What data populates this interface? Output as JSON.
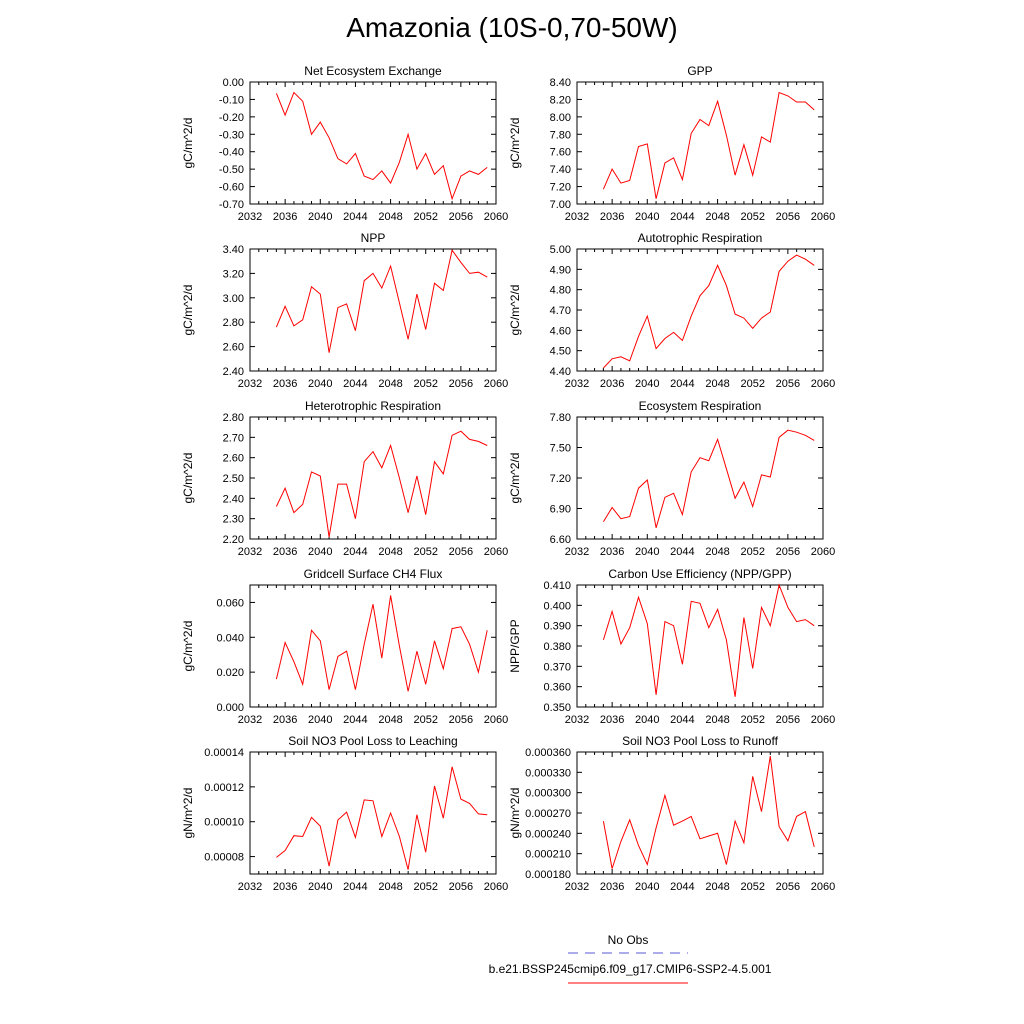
{
  "figure": {
    "title": "Amazonia (10S-0,70-50W)",
    "legend": [
      {
        "label": "No Obs",
        "color": "#5a5ad6",
        "style": "dashed"
      },
      {
        "label": "b.e21.BSSP245cmip6.f09_g17.CMIP6-SSP2-4.5.001",
        "color": "#ff0000",
        "style": "solid"
      }
    ],
    "line_color": "#ff0000"
  },
  "chart_data": [
    {
      "type": "line",
      "title": "Net Ecosystem Exchange",
      "ylabel": "gC/m^2/d",
      "xlim": [
        2032,
        2060
      ],
      "ylim": [
        -0.7,
        0.0
      ],
      "xticks": [
        "2032",
        "2036",
        "2040",
        "2044",
        "2048",
        "2052",
        "2056",
        "2060"
      ],
      "yticks": [
        "-0.70",
        "-0.60",
        "-0.50",
        "-0.40",
        "-0.30",
        "-0.20",
        "-0.10",
        "0.00"
      ],
      "x": [
        2035,
        2036,
        2037,
        2038,
        2039,
        2040,
        2041,
        2042,
        2043,
        2044,
        2045,
        2046,
        2047,
        2048,
        2049,
        2050,
        2051,
        2052,
        2053,
        2054,
        2055,
        2056,
        2057,
        2058,
        2059
      ],
      "series": [
        {
          "values": [
            -0.065,
            -0.19,
            -0.06,
            -0.11,
            -0.3,
            -0.23,
            -0.32,
            -0.44,
            -0.47,
            -0.41,
            -0.54,
            -0.56,
            -0.51,
            -0.58,
            -0.46,
            -0.3,
            -0.5,
            -0.41,
            -0.53,
            -0.48,
            -0.67,
            -0.54,
            -0.51,
            -0.53,
            -0.49
          ]
        }
      ]
    },
    {
      "type": "line",
      "title": "GPP",
      "ylabel": "gC/m^2/d",
      "xlim": [
        2032,
        2060
      ],
      "ylim": [
        7.0,
        8.4
      ],
      "xticks": [
        "2032",
        "2036",
        "2040",
        "2044",
        "2048",
        "2052",
        "2056",
        "2060"
      ],
      "yticks": [
        "7.00",
        "7.20",
        "7.40",
        "7.60",
        "7.80",
        "8.00",
        "8.20",
        "8.40"
      ],
      "x": [
        2035,
        2036,
        2037,
        2038,
        2039,
        2040,
        2041,
        2042,
        2043,
        2044,
        2045,
        2046,
        2047,
        2048,
        2049,
        2050,
        2051,
        2052,
        2053,
        2054,
        2055,
        2056,
        2057,
        2058,
        2059
      ],
      "series": [
        {
          "values": [
            7.17,
            7.4,
            7.24,
            7.27,
            7.66,
            7.69,
            7.06,
            7.47,
            7.53,
            7.28,
            7.81,
            7.97,
            7.9,
            8.18,
            7.79,
            7.33,
            7.68,
            7.33,
            7.77,
            7.71,
            8.28,
            8.24,
            8.17,
            8.17,
            8.08
          ]
        }
      ]
    },
    {
      "type": "line",
      "title": "NPP",
      "ylabel": "gC/m^2/d",
      "xlim": [
        2032,
        2060
      ],
      "ylim": [
        2.4,
        3.4
      ],
      "xticks": [
        "2032",
        "2036",
        "2040",
        "2044",
        "2048",
        "2052",
        "2056",
        "2060"
      ],
      "yticks": [
        "2.40",
        "2.60",
        "2.80",
        "3.00",
        "3.20",
        "3.40"
      ],
      "x": [
        2035,
        2036,
        2037,
        2038,
        2039,
        2040,
        2041,
        2042,
        2043,
        2044,
        2045,
        2046,
        2047,
        2048,
        2049,
        2050,
        2051,
        2052,
        2053,
        2054,
        2055,
        2056,
        2057,
        2058,
        2059
      ],
      "series": [
        {
          "values": [
            2.76,
            2.93,
            2.77,
            2.82,
            3.09,
            3.03,
            2.55,
            2.92,
            2.95,
            2.73,
            3.14,
            3.2,
            3.08,
            3.26,
            2.96,
            2.66,
            3.03,
            2.74,
            3.12,
            3.06,
            3.39,
            3.29,
            3.2,
            3.21,
            3.17
          ]
        }
      ]
    },
    {
      "type": "line",
      "title": "Autotrophic Respiration",
      "ylabel": "gC/m^2/d",
      "xlim": [
        2032,
        2060
      ],
      "ylim": [
        4.4,
        5.0
      ],
      "xticks": [
        "2032",
        "2036",
        "2040",
        "2044",
        "2048",
        "2052",
        "2056",
        "2060"
      ],
      "yticks": [
        "4.40",
        "4.50",
        "4.60",
        "4.70",
        "4.80",
        "4.90",
        "5.00"
      ],
      "x": [
        2035,
        2036,
        2037,
        2038,
        2039,
        2040,
        2041,
        2042,
        2043,
        2044,
        2045,
        2046,
        2047,
        2048,
        2049,
        2050,
        2051,
        2052,
        2053,
        2054,
        2055,
        2056,
        2057,
        2058,
        2059
      ],
      "series": [
        {
          "values": [
            4.415,
            4.46,
            4.47,
            4.45,
            4.57,
            4.67,
            4.51,
            4.56,
            4.59,
            4.55,
            4.67,
            4.77,
            4.82,
            4.92,
            4.82,
            4.68,
            4.66,
            4.61,
            4.66,
            4.69,
            4.89,
            4.94,
            4.97,
            4.95,
            4.92
          ]
        }
      ]
    },
    {
      "type": "line",
      "title": "Heterotrophic Respiration",
      "ylabel": "gC/m^2/d",
      "xlim": [
        2032,
        2060
      ],
      "ylim": [
        2.2,
        2.8
      ],
      "xticks": [
        "2032",
        "2036",
        "2040",
        "2044",
        "2048",
        "2052",
        "2056",
        "2060"
      ],
      "yticks": [
        "2.20",
        "2.30",
        "2.40",
        "2.50",
        "2.60",
        "2.70",
        "2.80"
      ],
      "x": [
        2035,
        2036,
        2037,
        2038,
        2039,
        2040,
        2041,
        2042,
        2043,
        2044,
        2045,
        2046,
        2047,
        2048,
        2049,
        2050,
        2051,
        2052,
        2053,
        2054,
        2055,
        2056,
        2057,
        2058,
        2059
      ],
      "series": [
        {
          "values": [
            2.36,
            2.45,
            2.33,
            2.37,
            2.53,
            2.51,
            2.21,
            2.47,
            2.47,
            2.3,
            2.58,
            2.63,
            2.55,
            2.66,
            2.5,
            2.33,
            2.51,
            2.32,
            2.58,
            2.52,
            2.71,
            2.73,
            2.69,
            2.68,
            2.66
          ]
        }
      ]
    },
    {
      "type": "line",
      "title": "Ecosystem Respiration",
      "ylabel": "gC/m^2/d",
      "xlim": [
        2032,
        2060
      ],
      "ylim": [
        6.6,
        7.8
      ],
      "xticks": [
        "2032",
        "2036",
        "2040",
        "2044",
        "2048",
        "2052",
        "2056",
        "2060"
      ],
      "yticks": [
        "6.60",
        "6.90",
        "7.20",
        "7.50",
        "7.80"
      ],
      "x": [
        2035,
        2036,
        2037,
        2038,
        2039,
        2040,
        2041,
        2042,
        2043,
        2044,
        2045,
        2046,
        2047,
        2048,
        2049,
        2050,
        2051,
        2052,
        2053,
        2054,
        2055,
        2056,
        2057,
        2058,
        2059
      ],
      "series": [
        {
          "values": [
            6.77,
            6.91,
            6.8,
            6.82,
            7.1,
            7.18,
            6.71,
            7.01,
            7.05,
            6.84,
            7.26,
            7.4,
            7.37,
            7.58,
            7.29,
            7.0,
            7.16,
            6.92,
            7.23,
            7.21,
            7.6,
            7.67,
            7.65,
            7.62,
            7.57
          ]
        }
      ]
    },
    {
      "type": "line",
      "title": "Gridcell Surface CH4 Flux",
      "ylabel": "gC/m^2/d",
      "xlim": [
        2032,
        2060
      ],
      "ylim": [
        0.0,
        0.07
      ],
      "xticks": [
        "2032",
        "2036",
        "2040",
        "2044",
        "2048",
        "2052",
        "2056",
        "2060"
      ],
      "yticks": [
        "0.000",
        "0.020",
        "0.040",
        "0.060"
      ],
      "ytick_values": [
        0.0,
        0.02,
        0.04,
        0.06
      ],
      "x": [
        2035,
        2036,
        2037,
        2038,
        2039,
        2040,
        2041,
        2042,
        2043,
        2044,
        2045,
        2046,
        2047,
        2048,
        2049,
        2050,
        2051,
        2052,
        2053,
        2054,
        2055,
        2056,
        2057,
        2058,
        2059
      ],
      "series": [
        {
          "values": [
            0.016,
            0.037,
            0.026,
            0.013,
            0.044,
            0.038,
            0.01,
            0.029,
            0.032,
            0.01,
            0.036,
            0.059,
            0.028,
            0.064,
            0.035,
            0.009,
            0.032,
            0.013,
            0.038,
            0.022,
            0.045,
            0.046,
            0.036,
            0.02,
            0.044
          ]
        }
      ]
    },
    {
      "type": "line",
      "title": "Carbon Use Efficiency (NPP/GPP)",
      "ylabel": "NPP/GPP",
      "xlim": [
        2032,
        2060
      ],
      "ylim": [
        0.35,
        0.41
      ],
      "xticks": [
        "2032",
        "2036",
        "2040",
        "2044",
        "2048",
        "2052",
        "2056",
        "2060"
      ],
      "yticks": [
        "0.350",
        "0.360",
        "0.370",
        "0.380",
        "0.390",
        "0.400",
        "0.410"
      ],
      "x": [
        2035,
        2036,
        2037,
        2038,
        2039,
        2040,
        2041,
        2042,
        2043,
        2044,
        2045,
        2046,
        2047,
        2048,
        2049,
        2050,
        2051,
        2052,
        2053,
        2054,
        2055,
        2056,
        2057,
        2058,
        2059
      ],
      "series": [
        {
          "values": [
            0.383,
            0.397,
            0.381,
            0.389,
            0.404,
            0.391,
            0.356,
            0.392,
            0.39,
            0.371,
            0.402,
            0.401,
            0.389,
            0.398,
            0.383,
            0.355,
            0.394,
            0.369,
            0.399,
            0.39,
            0.41,
            0.399,
            0.392,
            0.393,
            0.39
          ]
        }
      ]
    },
    {
      "type": "line",
      "title": "Soil NO3 Pool Loss to Leaching",
      "ylabel": "gN/m^2/d",
      "xlim": [
        2032,
        2060
      ],
      "ylim": [
        7e-05,
        0.00014
      ],
      "xticks": [
        "2032",
        "2036",
        "2040",
        "2044",
        "2048",
        "2052",
        "2056",
        "2060"
      ],
      "yticks": [
        "0.00008",
        "0.00010",
        "0.00012",
        "0.00014"
      ],
      "ytick_values": [
        8e-05,
        0.0001,
        0.00012,
        0.00014
      ],
      "x": [
        2035,
        2036,
        2037,
        2038,
        2039,
        2040,
        2041,
        2042,
        2043,
        2044,
        2045,
        2046,
        2047,
        2048,
        2049,
        2050,
        2051,
        2052,
        2053,
        2054,
        2055,
        2056,
        2057,
        2058,
        2059
      ],
      "series": [
        {
          "values": [
            7.95e-05,
            8.35e-05,
            9.2e-05,
            9.15e-05,
            0.0001025,
            9.75e-05,
            7.45e-05,
            0.000101,
            0.0001055,
            9.1e-05,
            0.0001125,
            0.000112,
            9.15e-05,
            0.000105,
            9.15e-05,
            7.25e-05,
            0.000104,
            8.25e-05,
            0.0001205,
            0.000102,
            0.0001315,
            0.000113,
            0.0001105,
            0.0001045,
            0.000104
          ]
        }
      ]
    },
    {
      "type": "line",
      "title": "Soil NO3 Pool Loss to Runoff",
      "ylabel": "gN/m^2/d",
      "xlim": [
        2032,
        2060
      ],
      "ylim": [
        0.00018,
        0.00036
      ],
      "xticks": [
        "2032",
        "2036",
        "2040",
        "2044",
        "2048",
        "2052",
        "2056",
        "2060"
      ],
      "yticks": [
        "0.000180",
        "0.000210",
        "0.000240",
        "0.000270",
        "0.000300",
        "0.000330",
        "0.000360"
      ],
      "x": [
        2035,
        2036,
        2037,
        2038,
        2039,
        2040,
        2041,
        2042,
        2043,
        2044,
        2045,
        2046,
        2047,
        2048,
        2049,
        2050,
        2051,
        2052,
        2053,
        2054,
        2055,
        2056,
        2057,
        2058,
        2059
      ],
      "series": [
        {
          "values": [
            0.000258,
            0.000188,
            0.000228,
            0.00026,
            0.000222,
            0.000194,
            0.000248,
            0.000296,
            0.000252,
            0.000258,
            0.000265,
            0.000232,
            0.000236,
            0.00024,
            0.000194,
            0.000258,
            0.000226,
            0.000324,
            0.000272,
            0.000354,
            0.00025,
            0.000229,
            0.000265,
            0.000272,
            0.00022
          ]
        }
      ]
    }
  ]
}
